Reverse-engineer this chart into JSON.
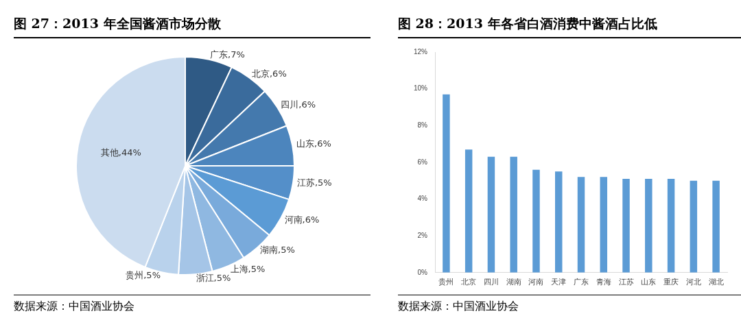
{
  "chart_data": [
    {
      "type": "pie",
      "title": "图 27：2013 年全国酱酒市场分散",
      "categories": [
        "广东",
        "北京",
        "四川",
        "山东",
        "江苏",
        "河南",
        "湖南",
        "上海",
        "浙江",
        "贵州",
        "其他"
      ],
      "values": [
        7,
        6,
        6,
        6,
        5,
        6,
        5,
        5,
        5,
        5,
        44
      ],
      "colors": [
        "#2f5a85",
        "#3a6b9c",
        "#4479ad",
        "#4c85bd",
        "#548fc9",
        "#5b9bd5",
        "#79aadb",
        "#8fb8e1",
        "#a5c5e7",
        "#b9d2ec",
        "#cbdcef"
      ],
      "value_labels": [
        "7%",
        "6%",
        "6%",
        "6%",
        "5%",
        "6%",
        "5%",
        "5%",
        "5%",
        "5%",
        "44%"
      ],
      "legend": false,
      "annotations": [
        "数据来源：中国酒业协会"
      ]
    },
    {
      "type": "bar",
      "title": "图 28：2013 年各省白酒消费中酱酒占比低",
      "categories": [
        "贵州",
        "北京",
        "四川",
        "湖南",
        "河南",
        "天津",
        "广东",
        "青海",
        "江苏",
        "山东",
        "重庆",
        "河北",
        "湖北"
      ],
      "values": [
        9.7,
        6.7,
        6.3,
        6.3,
        5.6,
        5.5,
        5.2,
        5.2,
        5.1,
        5.1,
        5.1,
        5.0,
        5.0
      ],
      "color": "#5b9bd5",
      "ylim": [
        0,
        12
      ],
      "yticks": [
        {
          "value": 0,
          "label": "0%"
        },
        {
          "value": 2,
          "label": "2%"
        },
        {
          "value": 4,
          "label": "4%"
        },
        {
          "value": 6,
          "label": "6%"
        },
        {
          "value": 8,
          "label": "8%"
        },
        {
          "value": 10,
          "label": "10%"
        },
        {
          "value": 12,
          "label": "12%"
        }
      ],
      "grid": false,
      "legend": false,
      "annotations": [
        "数据来源：中国酒业协会"
      ]
    }
  ]
}
